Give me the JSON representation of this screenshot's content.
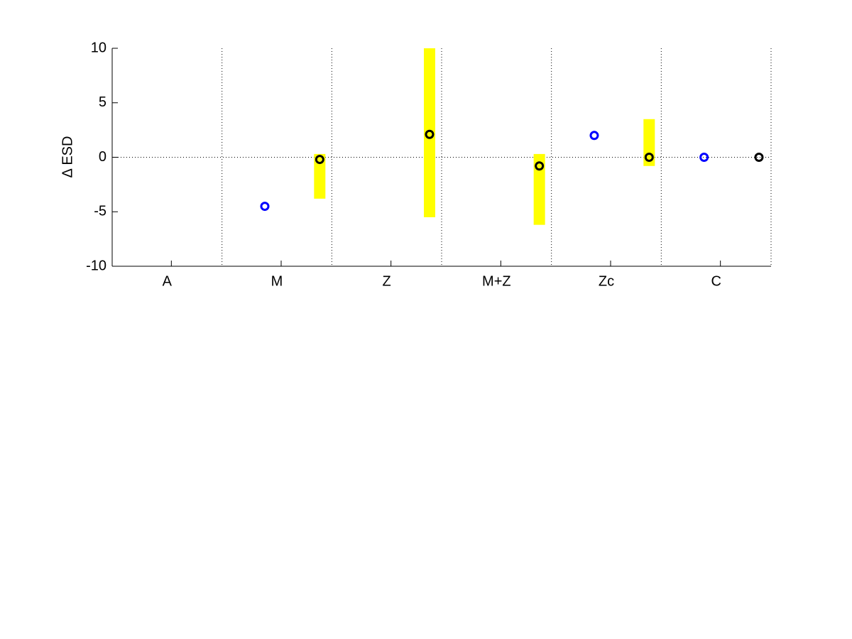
{
  "chart_data": {
    "type": "range-dot",
    "y_label": "Δ ESD",
    "categories": [
      "A",
      "M",
      "Z",
      "M+Z",
      "Zc",
      "C"
    ],
    "series": [
      {
        "color": "#0000ff",
        "values": [
          null,
          -4.5,
          null,
          null,
          2.0,
          0.0
        ]
      },
      {
        "color": "#000000",
        "values": [
          null,
          -0.2,
          2.1,
          -0.8,
          0.0,
          0.0
        ],
        "low": [
          null,
          -3.8,
          -5.5,
          -6.2,
          -0.8,
          null
        ],
        "high": [
          null,
          0.3,
          10,
          0.3,
          3.5,
          null
        ],
        "range_color": "#ffff00"
      }
    ],
    "ylim": [
      -10,
      10
    ],
    "yticks": [
      -10,
      -5,
      0,
      5,
      10
    ]
  }
}
